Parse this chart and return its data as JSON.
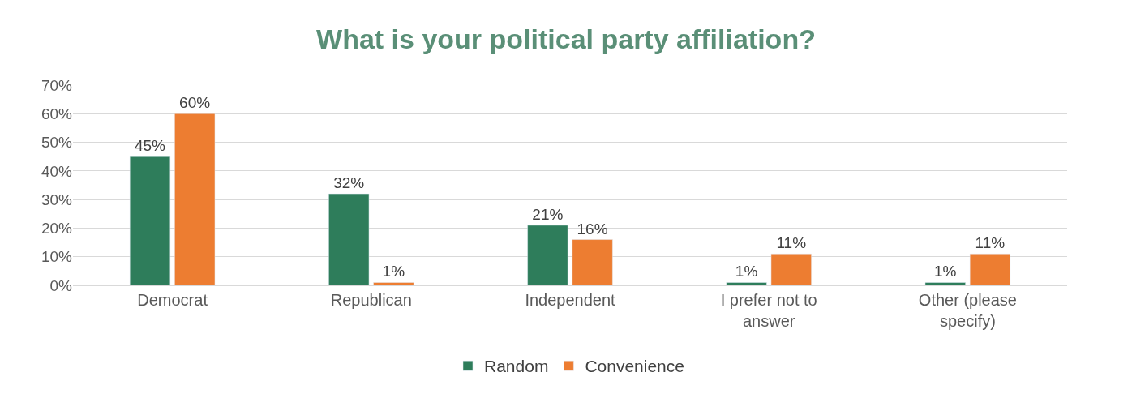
{
  "chart_data": {
    "type": "bar",
    "title": "What is your political party affiliation?",
    "categories": [
      "Democrat",
      "Republican",
      "Independent",
      "I prefer not to answer",
      "Other (please specify)"
    ],
    "series": [
      {
        "name": "Random",
        "color": "#2e7d5b",
        "values": [
          45,
          32,
          21,
          1,
          1
        ],
        "value_labels": [
          "45%",
          "32%",
          "21%",
          "1%",
          "1%"
        ]
      },
      {
        "name": "Convenience",
        "color": "#ed7d31",
        "values": [
          60,
          1,
          16,
          11,
          11
        ],
        "value_labels": [
          "60%",
          "1%",
          "16%",
          "11%",
          "11%"
        ]
      }
    ],
    "ylim": [
      0,
      70
    ],
    "yticks": [
      {
        "value": 0,
        "label": "0%"
      },
      {
        "value": 10,
        "label": "10%"
      },
      {
        "value": 20,
        "label": "20%"
      },
      {
        "value": 30,
        "label": "30%"
      },
      {
        "value": 40,
        "label": "40%"
      },
      {
        "value": 50,
        "label": "50%"
      },
      {
        "value": 60,
        "label": "60%"
      },
      {
        "value": 70,
        "label": "70%"
      }
    ],
    "grid": "y",
    "legend": "bottom"
  }
}
